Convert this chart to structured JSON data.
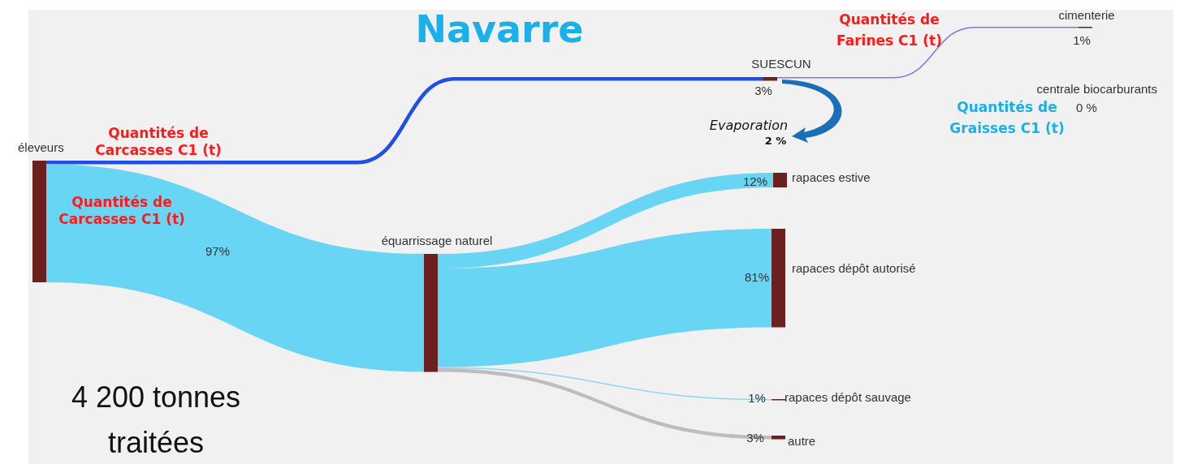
{
  "chart_data": {
    "type": "other",
    "title": "Navarre",
    "categories": [
      "éleveurs",
      "SUESCUN",
      "cimenterie",
      "centrale biocarburants",
      "équarrissage naturel",
      "rapaces estive",
      "rapaces dépôt autorisé",
      "rapaces dépôt sauvage",
      "autre"
    ],
    "values": [
      null,
      3,
      1,
      0,
      97,
      12,
      81,
      1,
      3
    ],
    "value_labels": [
      null,
      "3%",
      "1%",
      "0 %",
      "97%",
      "12%",
      "81%",
      "1%",
      "3%"
    ],
    "colors": [
      null,
      "#1f4fe6",
      "#7878f2",
      null,
      "#69d5f5",
      "#69d5f5",
      "#69d5f5",
      "#8fd6f2",
      "#bdbdbd"
    ],
    "annotations": [
      "Quantités de Carcasses C1 (t)",
      "Quantités de Carcasses C1 (t)",
      "Quantités de Farines C1 (t)",
      "Quantités de Graisses C1 (t)",
      "Evaporation",
      "2 %",
      "4 200 tonnes traitées"
    ]
  }
}
